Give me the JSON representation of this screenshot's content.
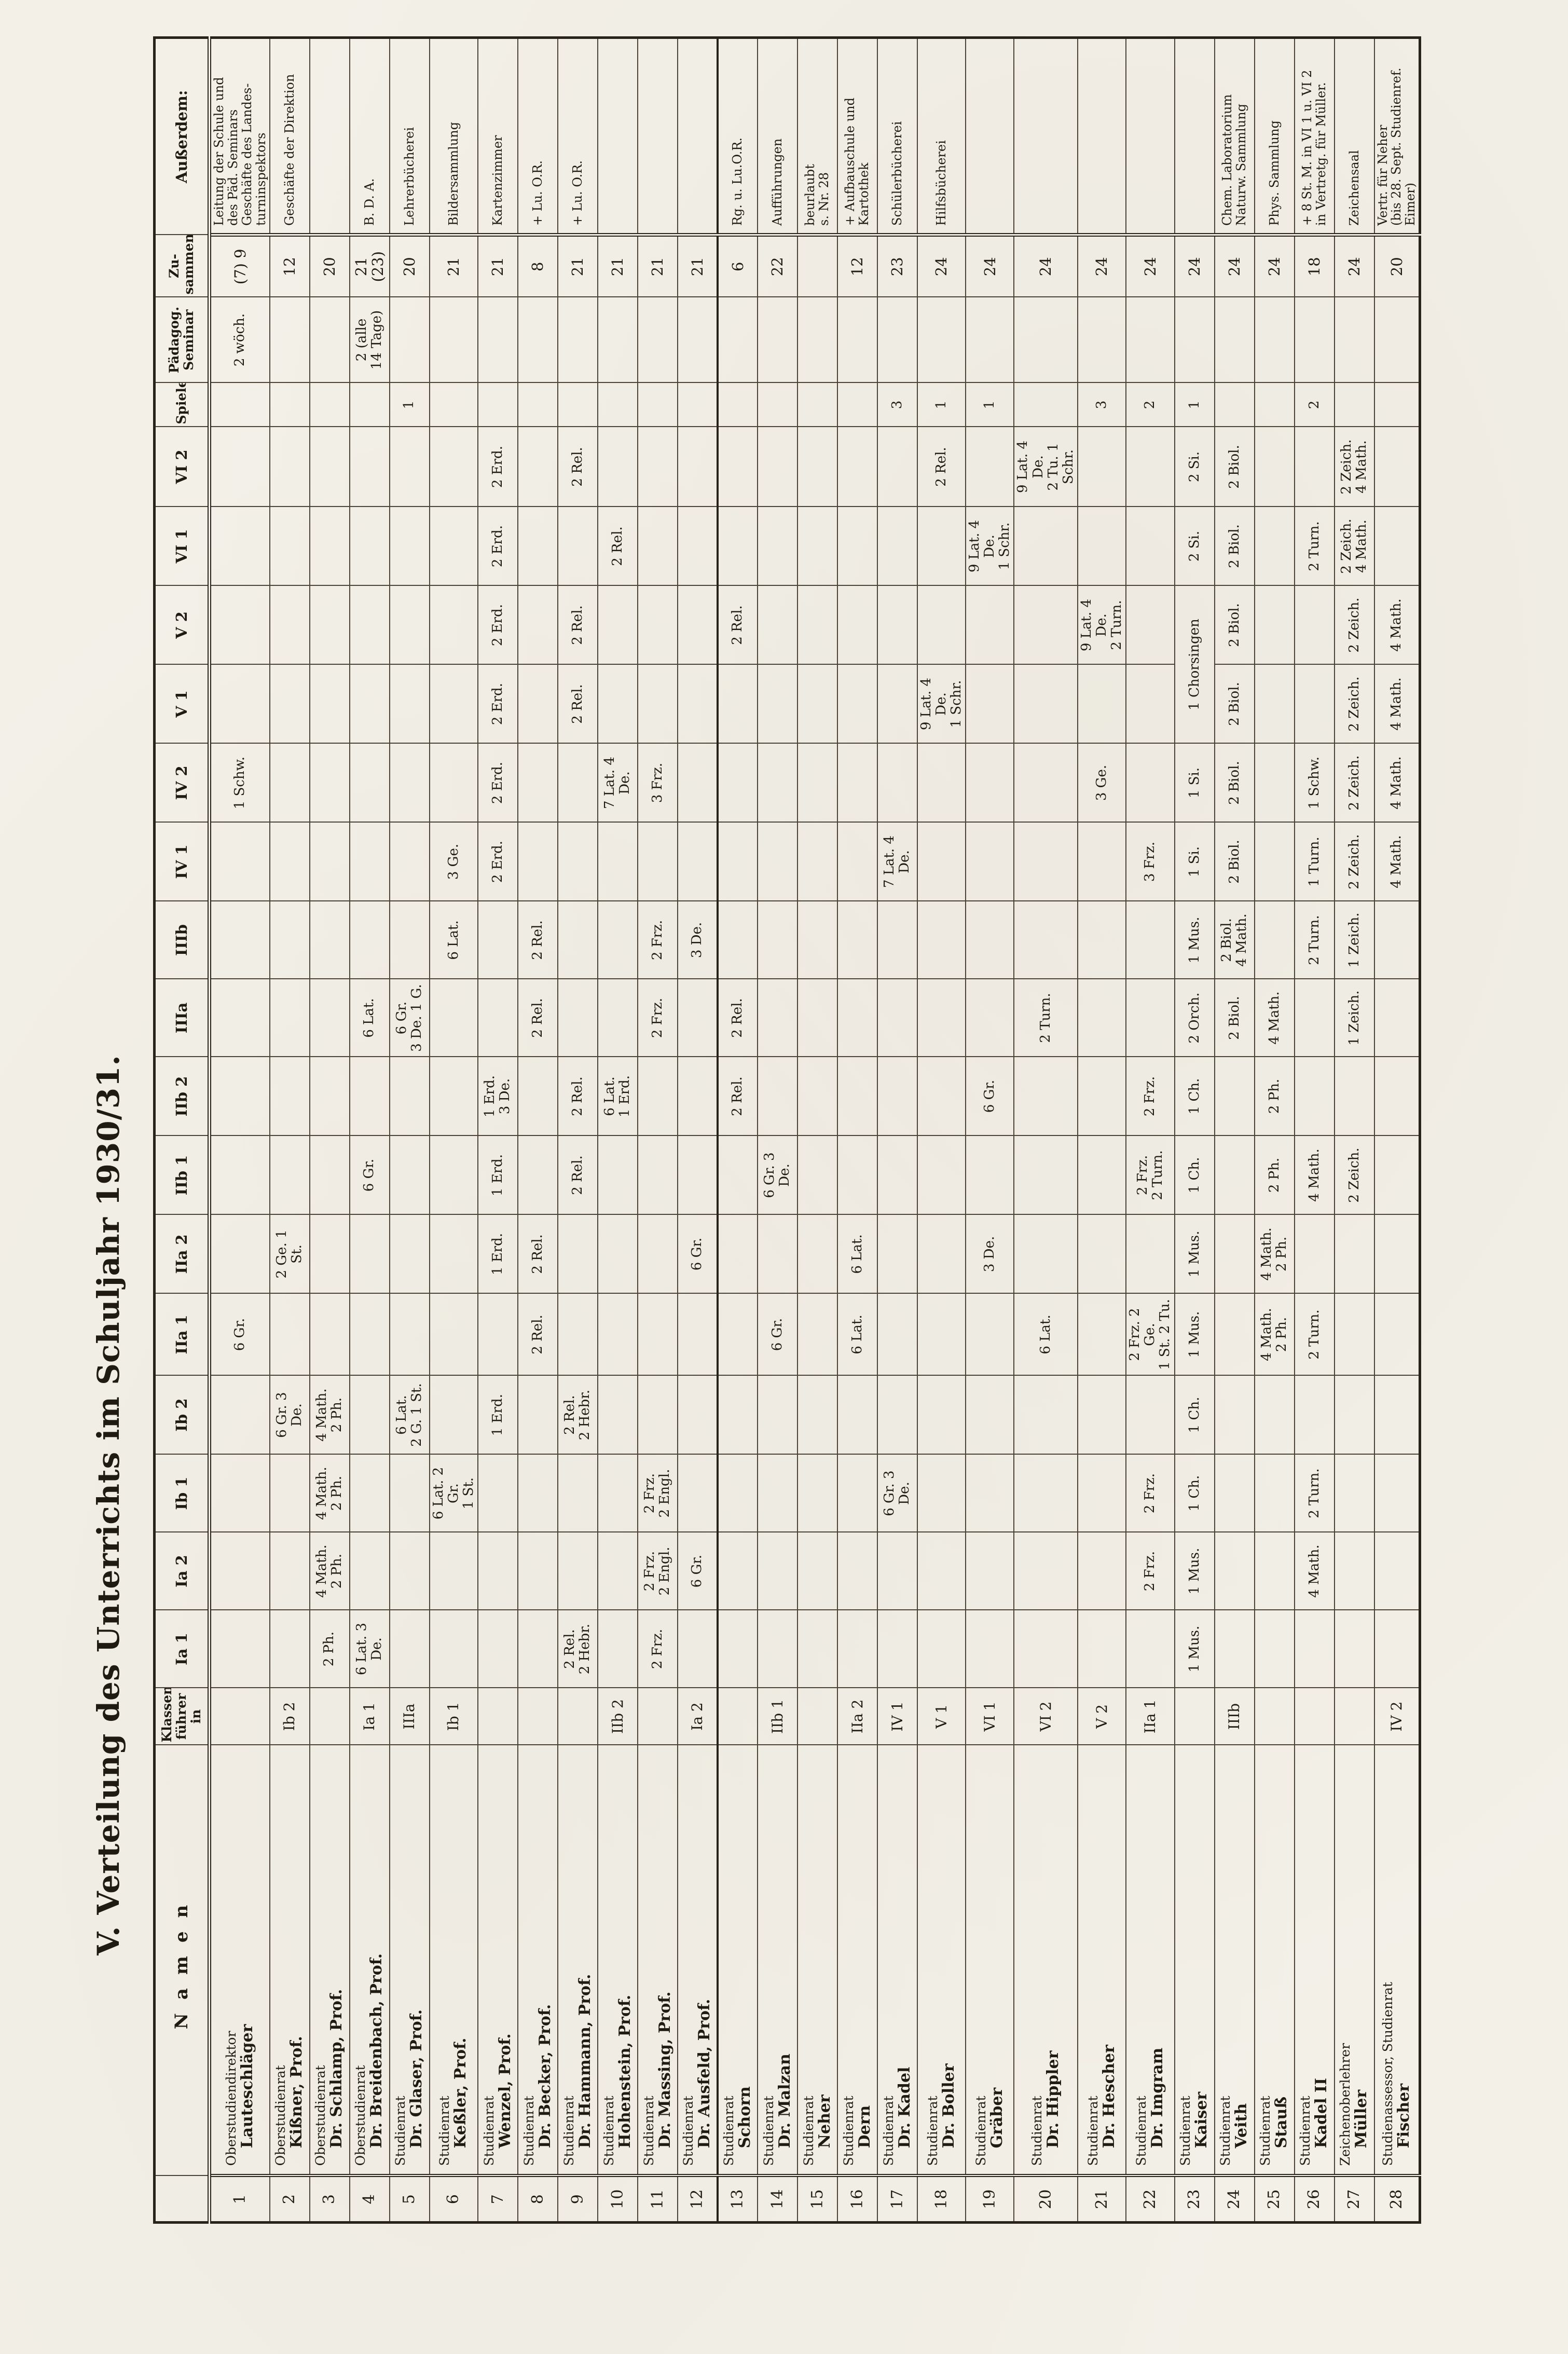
{
  "title": "V. Verteilung des Unterrichts im Schuljahr 1930/31.",
  "table": {
    "headers": {
      "nr": "",
      "namen": "Namen",
      "klassenfuehrer": "Klassen-\nführer in",
      "spielen": "Spielen",
      "paedagog_seminar": "Pädagog.\nSeminar",
      "zusammen": "Zu-\nsammen",
      "ausserdem": "Außerdem:"
    },
    "class_columns": [
      "Ia 1",
      "Ia 2",
      "Ib 1",
      "Ib 2",
      "IIa 1",
      "IIa 2",
      "IIb 1",
      "IIb 2",
      "IIIa",
      "IIIb",
      "IV 1",
      "IV 2",
      "V 1",
      "V 2",
      "VI 1",
      "VI 2"
    ],
    "rows": [
      {
        "nr": "1",
        "rank": "Oberstudiendirektor",
        "name": "Lauteschläger",
        "kf": "",
        "cells": [
          {
            "col": "IV 2",
            "text": "1 Schw."
          },
          {
            "col": "IIa 1",
            "text": "6 Gr."
          }
        ],
        "spielen": "",
        "paedsem": "2 wöch.",
        "zusammen": "(7) 9",
        "ausserdem": "Leitung der Schule und\ndes Päd. Seminars\nGeschäfte des Landes-\nturninspektors"
      },
      {
        "nr": "2",
        "rank": "Oberstudienrat",
        "name": "Kißner, Prof.",
        "kf": "Ib 2",
        "cells": [
          {
            "col": "Ib 2",
            "text": "6 Gr. 3 De."
          },
          {
            "col": "IIa 2",
            "text": "2 Ge. 1 St."
          }
        ],
        "spielen": "",
        "paedsem": "",
        "zusammen": "12",
        "ausserdem": "Geschäfte der Direktion"
      },
      {
        "nr": "3",
        "rank": "Oberstudienrat",
        "name": "Dr. Schlamp, Prof.",
        "kf": "",
        "cells": [
          {
            "col": "Ia 1",
            "text": "2 Ph."
          },
          {
            "col": "Ia 2",
            "text": "4 Math.\n2 Ph."
          },
          {
            "col": "Ib 1",
            "text": "4 Math.\n2 Ph."
          },
          {
            "col": "Ib 2",
            "text": "4 Math.\n2 Ph."
          }
        ],
        "spielen": "",
        "paedsem": "",
        "zusammen": "20",
        "ausserdem": ""
      },
      {
        "nr": "4",
        "rank": "Oberstudienrat",
        "name": "Dr. Breidenbach, Prof.",
        "kf": "Ia 1",
        "cells": [
          {
            "col": "Ia 1",
            "text": "6 Lat. 3 De."
          },
          {
            "col": "IIb 1",
            "text": "6 Gr."
          },
          {
            "col": "IIIa",
            "text": "6 Lat."
          }
        ],
        "spielen": "",
        "paedsem": "2 (alle\n14 Tage)",
        "zusammen": "21 (23)",
        "ausserdem": "B. D. A."
      },
      {
        "nr": "5",
        "rank": "Studienrat",
        "name": "Dr. Glaser, Prof.",
        "kf": "IIIa",
        "cells": [
          {
            "col": "Ib 2",
            "text": "6 Lat.\n2 G. 1 St."
          },
          {
            "col": "IIIa",
            "text": "6 Gr.\n3 De. 1 G."
          }
        ],
        "spielen": "1",
        "paedsem": "",
        "zusammen": "20",
        "ausserdem": "Lehrerbücherei"
      },
      {
        "nr": "6",
        "rank": "Studienrat",
        "name": "Keßler, Prof.",
        "kf": "Ib 1",
        "cells": [
          {
            "col": "Ib 1",
            "text": "6 Lat. 2 Gr.\n1 St."
          },
          {
            "col": "IIIb",
            "text": "6 Lat."
          },
          {
            "col": "IV 1",
            "text": "3 Ge."
          }
        ],
        "spielen": "",
        "paedsem": "",
        "zusammen": "21",
        "ausserdem": "Bildersammlung"
      },
      {
        "nr": "7",
        "rank": "Studienrat",
        "name": "Wenzel, Prof.",
        "kf": "",
        "cells": [
          {
            "col": "Ib 2",
            "text": "1 Erd."
          },
          {
            "col": "IIa 2",
            "text": "1 Erd."
          },
          {
            "col": "IIb 1",
            "text": "1 Erd."
          },
          {
            "col": "IIb 2",
            "text": "1 Erd.\n3 De."
          },
          {
            "col": "IV 1",
            "text": "2 Erd."
          },
          {
            "col": "IV 2",
            "text": "2 Erd."
          },
          {
            "col": "V 1",
            "text": "2 Erd."
          },
          {
            "col": "V 2",
            "text": "2 Erd."
          },
          {
            "col": "VI 1",
            "text": "2 Erd."
          },
          {
            "col": "VI 2",
            "text": "2 Erd."
          }
        ],
        "spielen": "",
        "paedsem": "",
        "zusammen": "21",
        "ausserdem": "Kartenzimmer"
      },
      {
        "nr": "8",
        "rank": "Studienrat",
        "name": "Dr. Becker, Prof.",
        "kf": "",
        "cells": [
          {
            "col": "IIa 1",
            "text": "2 Rel."
          },
          {
            "col": "IIa 2",
            "text": "2 Rel."
          },
          {
            "col": "IIIa",
            "text": "2 Rel."
          },
          {
            "col": "IIIb",
            "text": "2 Rel."
          }
        ],
        "spielen": "",
        "paedsem": "",
        "zusammen": "8",
        "ausserdem": "+ Lu. O.R."
      },
      {
        "nr": "9",
        "rank": "Studienrat",
        "name": "Dr. Hammann, Prof.",
        "kf": "",
        "cells": [
          {
            "col": "Ia 1",
            "text": "2 Rel.\n2 Hebr."
          },
          {
            "col": "Ib 2",
            "text": "2 Rel.\n2 Hebr."
          },
          {
            "col": "IIb 1",
            "text": "2 Rel."
          },
          {
            "col": "IIb 2",
            "text": "2 Rel."
          },
          {
            "col": "V 1",
            "text": "2 Rel."
          },
          {
            "col": "V 2",
            "text": "2 Rel."
          },
          {
            "col": "VI 2",
            "text": "2 Rel."
          }
        ],
        "spielen": "",
        "paedsem": "",
        "zusammen": "21",
        "ausserdem": "+ Lu. O.R."
      },
      {
        "nr": "10",
        "rank": "Studienrat",
        "name": "Hohenstein, Prof.",
        "kf": "IIb 2",
        "cells": [
          {
            "col": "IIb 2",
            "text": "6 Lat.\n1 Erd."
          },
          {
            "col": "IV 2",
            "text": "7 Lat. 4 De."
          },
          {
            "col": "VI 1",
            "text": "2 Rel."
          }
        ],
        "spielen": "",
        "paedsem": "",
        "zusammen": "21",
        "ausserdem": ""
      },
      {
        "nr": "11",
        "rank": "Studienrat",
        "name": "Dr. Massing, Prof.",
        "kf": "",
        "cells": [
          {
            "col": "Ia 1",
            "text": "2 Frz."
          },
          {
            "col": "Ia 2",
            "text": "2 Frz.\n2 Engl."
          },
          {
            "col": "Ib 1",
            "text": "2 Frz.\n2 Engl."
          },
          {
            "col": "IIIa",
            "text": "2 Frz."
          },
          {
            "col": "IIIb",
            "text": "2 Frz."
          },
          {
            "col": "IV 2",
            "text": "3 Frz."
          }
        ],
        "spielen": "",
        "paedsem": "",
        "zusammen": "21",
        "ausserdem": ""
      },
      {
        "nr": "12",
        "rank": "Studienrat",
        "name": "Dr. Ausfeld, Prof.",
        "kf": "Ia 2",
        "cells": [
          {
            "col": "Ia 2",
            "text": "6 Gr."
          },
          {
            "col": "IIa 2",
            "text": "6 Gr."
          },
          {
            "col": "IIIb",
            "text": "3 De."
          }
        ],
        "spielen": "",
        "paedsem": "",
        "zusammen": "21",
        "ausserdem": ""
      },
      {
        "nr": "13",
        "rank": "Studienrat",
        "name": "Schorn",
        "kf": "",
        "cells": [
          {
            "col": "IIb 2",
            "text": "2 Rel."
          },
          {
            "col": "IIIa",
            "text": "2 Rel."
          },
          {
            "col": "V 2",
            "text": "2 Rel."
          }
        ],
        "spielen": "",
        "paedsem": "",
        "zusammen": "6",
        "ausserdem": "Rg. u. Lu.O.R."
      },
      {
        "nr": "14",
        "rank": "Studienrat",
        "name": "Dr. Malzan",
        "kf": "IIb 1",
        "cells": [
          {
            "col": "IIa 1",
            "text": "6 Gr."
          },
          {
            "col": "IIb 1",
            "text": "6 Gr. 3 De."
          }
        ],
        "spielen": "",
        "paedsem": "",
        "zusammen": "22",
        "ausserdem": "Aufführungen"
      },
      {
        "nr": "15",
        "rank": "Studienrat",
        "name": "Neher",
        "kf": "",
        "cells": [],
        "spielen": "",
        "paedsem": "",
        "zusammen": "",
        "ausserdem": "beurlaubt\ns. Nr. 28"
      },
      {
        "nr": "16",
        "rank": "Studienrat",
        "name": "Dern",
        "kf": "IIa 2",
        "cells": [
          {
            "col": "IIa 1",
            "text": "6 Lat."
          },
          {
            "col": "IIa 2",
            "text": "6 Lat."
          }
        ],
        "spielen": "",
        "paedsem": "",
        "zusammen": "12",
        "ausserdem": "+ Aufbauschule und\nKartothek"
      },
      {
        "nr": "17",
        "rank": "Studienrat",
        "name": "Dr. Kadel",
        "kf": "IV 1",
        "cells": [
          {
            "col": "Ib 1",
            "text": "6 Gr. 3 De."
          },
          {
            "col": "IV 1",
            "text": "7 Lat. 4 De."
          }
        ],
        "spielen": "3",
        "paedsem": "",
        "zusammen": "23",
        "ausserdem": "Schülerbücherei"
      },
      {
        "nr": "18",
        "rank": "Studienrat",
        "name": "Dr. Boller",
        "kf": "V 1",
        "cells": [
          {
            "col": "V 1",
            "text": "9 Lat. 4 De.\n1 Schr."
          },
          {
            "col": "VI 2",
            "text": "2 Rel."
          }
        ],
        "spielen": "1",
        "paedsem": "",
        "zusammen": "24",
        "ausserdem": "Hilfsbücherei"
      },
      {
        "nr": "19",
        "rank": "Studienrat",
        "name": "Gräber",
        "kf": "VI 1",
        "cells": [
          {
            "col": "IIa 2",
            "text": "3 De."
          },
          {
            "col": "IIb 2",
            "text": "6 Gr."
          },
          {
            "col": "VI 1",
            "text": "9 Lat. 4 De.\n1 Schr."
          }
        ],
        "spielen": "1",
        "paedsem": "",
        "zusammen": "24",
        "ausserdem": ""
      },
      {
        "nr": "20",
        "rank": "Studienrat",
        "name": "Dr. Hippler",
        "kf": "VI 2",
        "cells": [
          {
            "col": "IIa 1",
            "text": "6 Lat."
          },
          {
            "col": "IIIa",
            "text": "2 Turn."
          },
          {
            "col": "VI 2",
            "text": "9 Lat. 4 De.\n2 Tu. 1 Schr."
          }
        ],
        "spielen": "",
        "paedsem": "",
        "zusammen": "24",
        "ausserdem": ""
      },
      {
        "nr": "21",
        "rank": "Studienrat",
        "name": "Dr. Hescher",
        "kf": "V 2",
        "cells": [
          {
            "col": "IV 2",
            "text": "3 Ge."
          },
          {
            "col": "V 2",
            "text": "9 Lat. 4 De.\n2 Turn."
          }
        ],
        "spielen": "3",
        "paedsem": "",
        "zusammen": "24",
        "ausserdem": ""
      },
      {
        "nr": "22",
        "rank": "Studienrat",
        "name": "Dr. Imgram",
        "kf": "IIa 1",
        "cells": [
          {
            "col": "Ia 2",
            "text": "2 Frz."
          },
          {
            "col": "Ib 1",
            "text": "2 Frz."
          },
          {
            "col": "IIa 1",
            "text": "2 Frz. 2 Ge.\n1 St. 2 Tu."
          },
          {
            "col": "IIb 1",
            "text": "2 Frz.\n2 Turn."
          },
          {
            "col": "IIb 2",
            "text": "2 Frz."
          },
          {
            "col": "IV 1",
            "text": "3 Frz."
          }
        ],
        "spielen": "2",
        "paedsem": "",
        "zusammen": "24",
        "ausserdem": ""
      },
      {
        "nr": "23",
        "rank": "Studienrat",
        "name": "Kaiser",
        "kf": "",
        "cells": [
          {
            "col": "Ia 1",
            "text": "1 Mus."
          },
          {
            "col": "Ia 2",
            "text": "1 Mus."
          },
          {
            "col": "Ib 1",
            "text": "1 Ch."
          },
          {
            "col": "Ib 2",
            "text": "1 Ch."
          },
          {
            "col": "IIa 1",
            "text": "1 Mus."
          },
          {
            "col": "IIa 2",
            "text": "1 Mus."
          },
          {
            "col": "IIb 1",
            "text": "1 Ch."
          },
          {
            "col": "IIb 2",
            "text": "1 Ch."
          },
          {
            "col": "IIIa",
            "text": "2 Orch."
          },
          {
            "col": "IIIb",
            "text": "1 Mus."
          },
          {
            "col": "IV 1",
            "text": "1 Si."
          },
          {
            "col": "IV 2",
            "text": "1 Si."
          },
          {
            "col": "V 1",
            "text": "1 Chorsingen",
            "span": 2
          },
          {
            "col": "VI 1",
            "text": "2 Si."
          },
          {
            "col": "VI 2",
            "text": "2 Si."
          }
        ],
        "spielen": "1",
        "paedsem": "",
        "zusammen": "24",
        "ausserdem": ""
      },
      {
        "nr": "24",
        "rank": "Studienrat",
        "name": "Veith",
        "kf": "IIIb",
        "cells": [
          {
            "col": "IIIa",
            "text": "2 Biol."
          },
          {
            "col": "IIIb",
            "text": "2 Biol.\n4 Math."
          },
          {
            "col": "IV 1",
            "text": "2 Biol."
          },
          {
            "col": "IV 2",
            "text": "2 Biol."
          },
          {
            "col": "V 1",
            "text": "2 Biol."
          },
          {
            "col": "V 2",
            "text": "2 Biol."
          },
          {
            "col": "VI 1",
            "text": "2 Biol."
          },
          {
            "col": "VI 2",
            "text": "2 Biol."
          }
        ],
        "spielen": "",
        "paedsem": "",
        "zusammen": "24",
        "ausserdem": "Chem. Laboratorium\nNaturw. Sammlung"
      },
      {
        "nr": "25",
        "rank": "Studienrat",
        "name": "Stauß",
        "kf": "",
        "cells": [
          {
            "col": "IIa 1",
            "text": "4 Math.\n2 Ph."
          },
          {
            "col": "IIa 2",
            "text": "4 Math.\n2 Ph."
          },
          {
            "col": "IIb 1",
            "text": "2 Ph."
          },
          {
            "col": "IIb 2",
            "text": "2 Ph."
          },
          {
            "col": "IIIa",
            "text": "4 Math."
          }
        ],
        "spielen": "",
        "paedsem": "",
        "zusammen": "24",
        "ausserdem": "Phys. Sammlung"
      },
      {
        "nr": "26",
        "rank": "Studienrat",
        "name": "Kadel II",
        "kf": "",
        "cells": [
          {
            "col": "Ia 2",
            "text": "4 Math."
          },
          {
            "col": "Ib 1",
            "text": "2 Turn."
          },
          {
            "col": "IIa 1",
            "text": "2 Turn."
          },
          {
            "col": "IIb 1",
            "text": "4 Math."
          },
          {
            "col": "IIIb",
            "text": "2 Turn."
          },
          {
            "col": "IV 1",
            "text": "1 Turn."
          },
          {
            "col": "IV 2",
            "text": "1 Schw."
          },
          {
            "col": "VI 1",
            "text": "2 Turn."
          }
        ],
        "spielen": "2",
        "paedsem": "",
        "zusammen": "18",
        "ausserdem": "+ 8 St. M. in VI 1 u. VI 2\nin Vertretg. für Müller."
      },
      {
        "nr": "27",
        "rank": "Zeichenoberlehrer",
        "name": "Müller",
        "kf": "",
        "cells": [
          {
            "col": "IIb 1",
            "text": "2 Zeich."
          },
          {
            "col": "IIIa",
            "text": "1 Zeich."
          },
          {
            "col": "IIIb",
            "text": "1 Zeich."
          },
          {
            "col": "IV 1",
            "text": "2 Zeich."
          },
          {
            "col": "IV 2",
            "text": "2 Zeich."
          },
          {
            "col": "V 1",
            "text": "2 Zeich."
          },
          {
            "col": "V 2",
            "text": "2 Zeich."
          },
          {
            "col": "VI 1",
            "text": "2 Zeich.\n4 Math."
          },
          {
            "col": "VI 2",
            "text": "2 Zeich.\n4 Math."
          }
        ],
        "spielen": "",
        "paedsem": "",
        "zusammen": "24",
        "ausserdem": "Zeichensaal"
      },
      {
        "nr": "28",
        "rank": "Studienassessor, Studienrat",
        "name": "Fischer",
        "kf": "IV 2",
        "cells": [
          {
            "col": "IV 1",
            "text": "4 Math."
          },
          {
            "col": "IV 2",
            "text": "4 Math."
          },
          {
            "col": "V 1",
            "text": "4 Math."
          },
          {
            "col": "V 2",
            "text": "4 Math."
          }
        ],
        "spielen": "",
        "paedsem": "",
        "zusammen": "20",
        "ausserdem": "Vertr. für Neher\n(bis 28. Sept. Studienref.\nEimer)"
      }
    ]
  }
}
